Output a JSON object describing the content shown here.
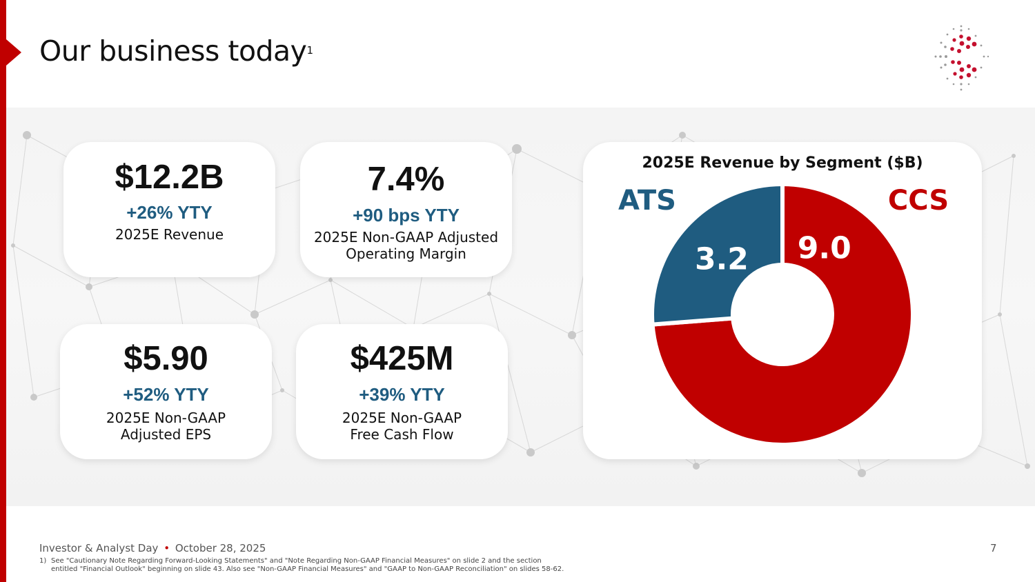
{
  "slide": {
    "title": "Our business today",
    "title_superscript": "1",
    "page_number": "7"
  },
  "colors": {
    "brand_red": "#c00000",
    "ats_blue": "#1f5c80",
    "kpi_blue": "#1f5c80"
  },
  "kpis": [
    {
      "value": "$12.2B",
      "delta": "+26% YTY",
      "label_line1": "2025E Revenue",
      "label_line2": ""
    },
    {
      "value": "7.4%",
      "delta": "+90 bps YTY",
      "label_line1": "2025E Non-GAAP Adjusted",
      "label_line2": "Operating Margin"
    },
    {
      "value": "$5.90",
      "delta": "+52% YTY",
      "label_line1": "2025E Non-GAAP",
      "label_line2": "Adjusted EPS"
    },
    {
      "value": "$425M",
      "delta": "+39% YTY",
      "label_line1": "2025E Non-GAAP",
      "label_line2": "Free Cash Flow"
    }
  ],
  "chart_data": {
    "type": "pie",
    "variant": "donut",
    "title": "2025E Revenue by Segment ($B)",
    "categories": [
      "CCS",
      "ATS"
    ],
    "values": [
      9.0,
      3.2
    ],
    "value_labels": [
      "9.0",
      "3.2"
    ],
    "colors": [
      "#c00000",
      "#1f5c80"
    ],
    "legend": "labels placed outside the ring: ATS top-left, CCS top-right"
  },
  "footer": {
    "event": "Investor & Analyst Day",
    "separator": "•",
    "date": "October 28, 2025"
  },
  "footnote": {
    "number": "1)",
    "line1": "See \"Cautionary Note Regarding Forward-Looking Statements\" and \"Note Regarding Non-GAAP Financial Measures\" on slide 2 and the section",
    "line2": "entitled \"Financial Outlook\" beginning on slide 43. Also see \"Non-GAAP Financial Measures\" and \"GAAP to Non-GAAP Reconciliation\" on slides 58-62."
  },
  "icons": {
    "logo": "sparkle-dot-logo-icon",
    "title_marker": "red-arrow-marker-icon"
  }
}
